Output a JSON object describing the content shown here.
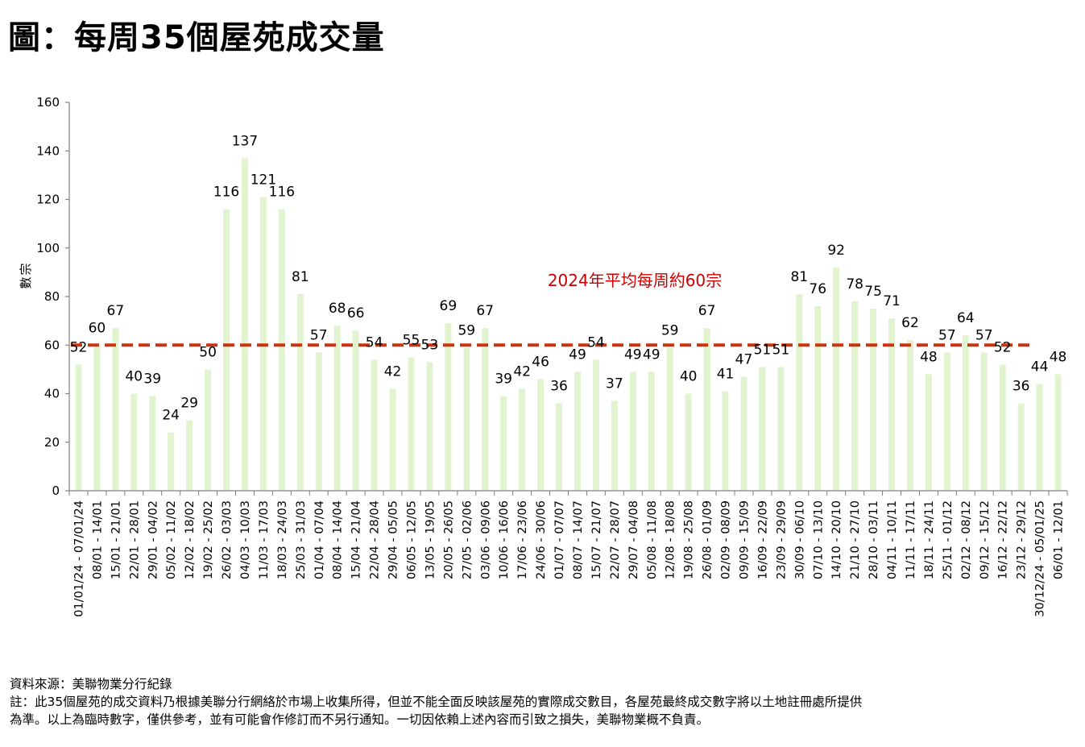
{
  "page": {
    "title": "圖：每周35個屋苑成交量",
    "source": "資料來源：美聯物業分行紀錄",
    "note_line1": "註：此35個屋苑的成交資料乃根據美聯分行網絡於市場上收集所得，但並不能全面反映該屋苑的實際成交數目，各屋苑最終成交數字將以土地註冊處所提供",
    "note_line2": "為準。以上為臨時數字，僅供參考，並有可能會作修訂而不另行通知。一切因依賴上述內容而引致之損失，美聯物業概不負責。"
  },
  "chart_data": {
    "type": "bar",
    "title": "圖：每周35個屋苑成交量",
    "ylabel": "宗數",
    "xlabel": "",
    "ylim": [
      0,
      160
    ],
    "yticks": [
      0,
      20,
      40,
      60,
      80,
      100,
      120,
      140,
      160
    ],
    "bar_color": "#e2f4cf",
    "categories": [
      "01/01/24 - 07/01/24",
      "08/01 - 14/01",
      "15/01 - 21/01",
      "22/01 - 28/01",
      "29/01 - 04/02",
      "05/02 - 11/02",
      "12/02 - 18/02",
      "19/02 - 25/02",
      "26/02 - 03/03",
      "04/03 - 10/03",
      "11/03 - 17/03",
      "18/03 - 24/03",
      "25/03 - 31/03",
      "01/04 - 07/04",
      "08/04 - 14/04",
      "15/04 - 21/04",
      "22/04 - 28/04",
      "29/04 - 05/05",
      "06/05 - 12/05",
      "13/05 - 19/05",
      "20/05 - 26/05",
      "27/05 - 02/06",
      "03/06 - 09/06",
      "10/06 - 16/06",
      "17/06 - 23/06",
      "24/06 - 30/06",
      "01/07 - 07/07",
      "08/07 - 14/07",
      "15/07 - 21/07",
      "22/07 - 28/07",
      "29/07 - 04/08",
      "05/08 - 11/08",
      "12/08 - 18/08",
      "19/08 - 25/08",
      "26/08 - 01/09",
      "02/09 - 08/09",
      "09/09 - 15/09",
      "16/09 - 22/09",
      "23/09 - 29/09",
      "30/09 - 06/10",
      "07/10 - 13/10",
      "14/10 - 20/10",
      "21/10 - 27/10",
      "28/10 - 03/11",
      "04/11 - 10/11",
      "11/11 - 17/11",
      "18/11 - 24/11",
      "25/11 - 01/12",
      "02/12 - 08/12",
      "09/12 - 15/12",
      "16/12 - 22/12",
      "23/12 - 29/12",
      "30/12/24 - 05/01/25",
      "06/01 - 12/01"
    ],
    "values": [
      52,
      60,
      67,
      40,
      39,
      24,
      29,
      50,
      116,
      137,
      121,
      116,
      81,
      57,
      68,
      66,
      54,
      42,
      55,
      53,
      69,
      59,
      67,
      39,
      42,
      46,
      36,
      49,
      54,
      37,
      49,
      49,
      59,
      40,
      67,
      41,
      47,
      51,
      51,
      81,
      76,
      92,
      78,
      75,
      71,
      62,
      48,
      57,
      64,
      57,
      52,
      36,
      44,
      48
    ],
    "average_line": {
      "value": 60,
      "label": "2024年平均每周約60宗",
      "color": "#cc3311",
      "label_color": "#cc0000",
      "end_index": 51
    }
  }
}
